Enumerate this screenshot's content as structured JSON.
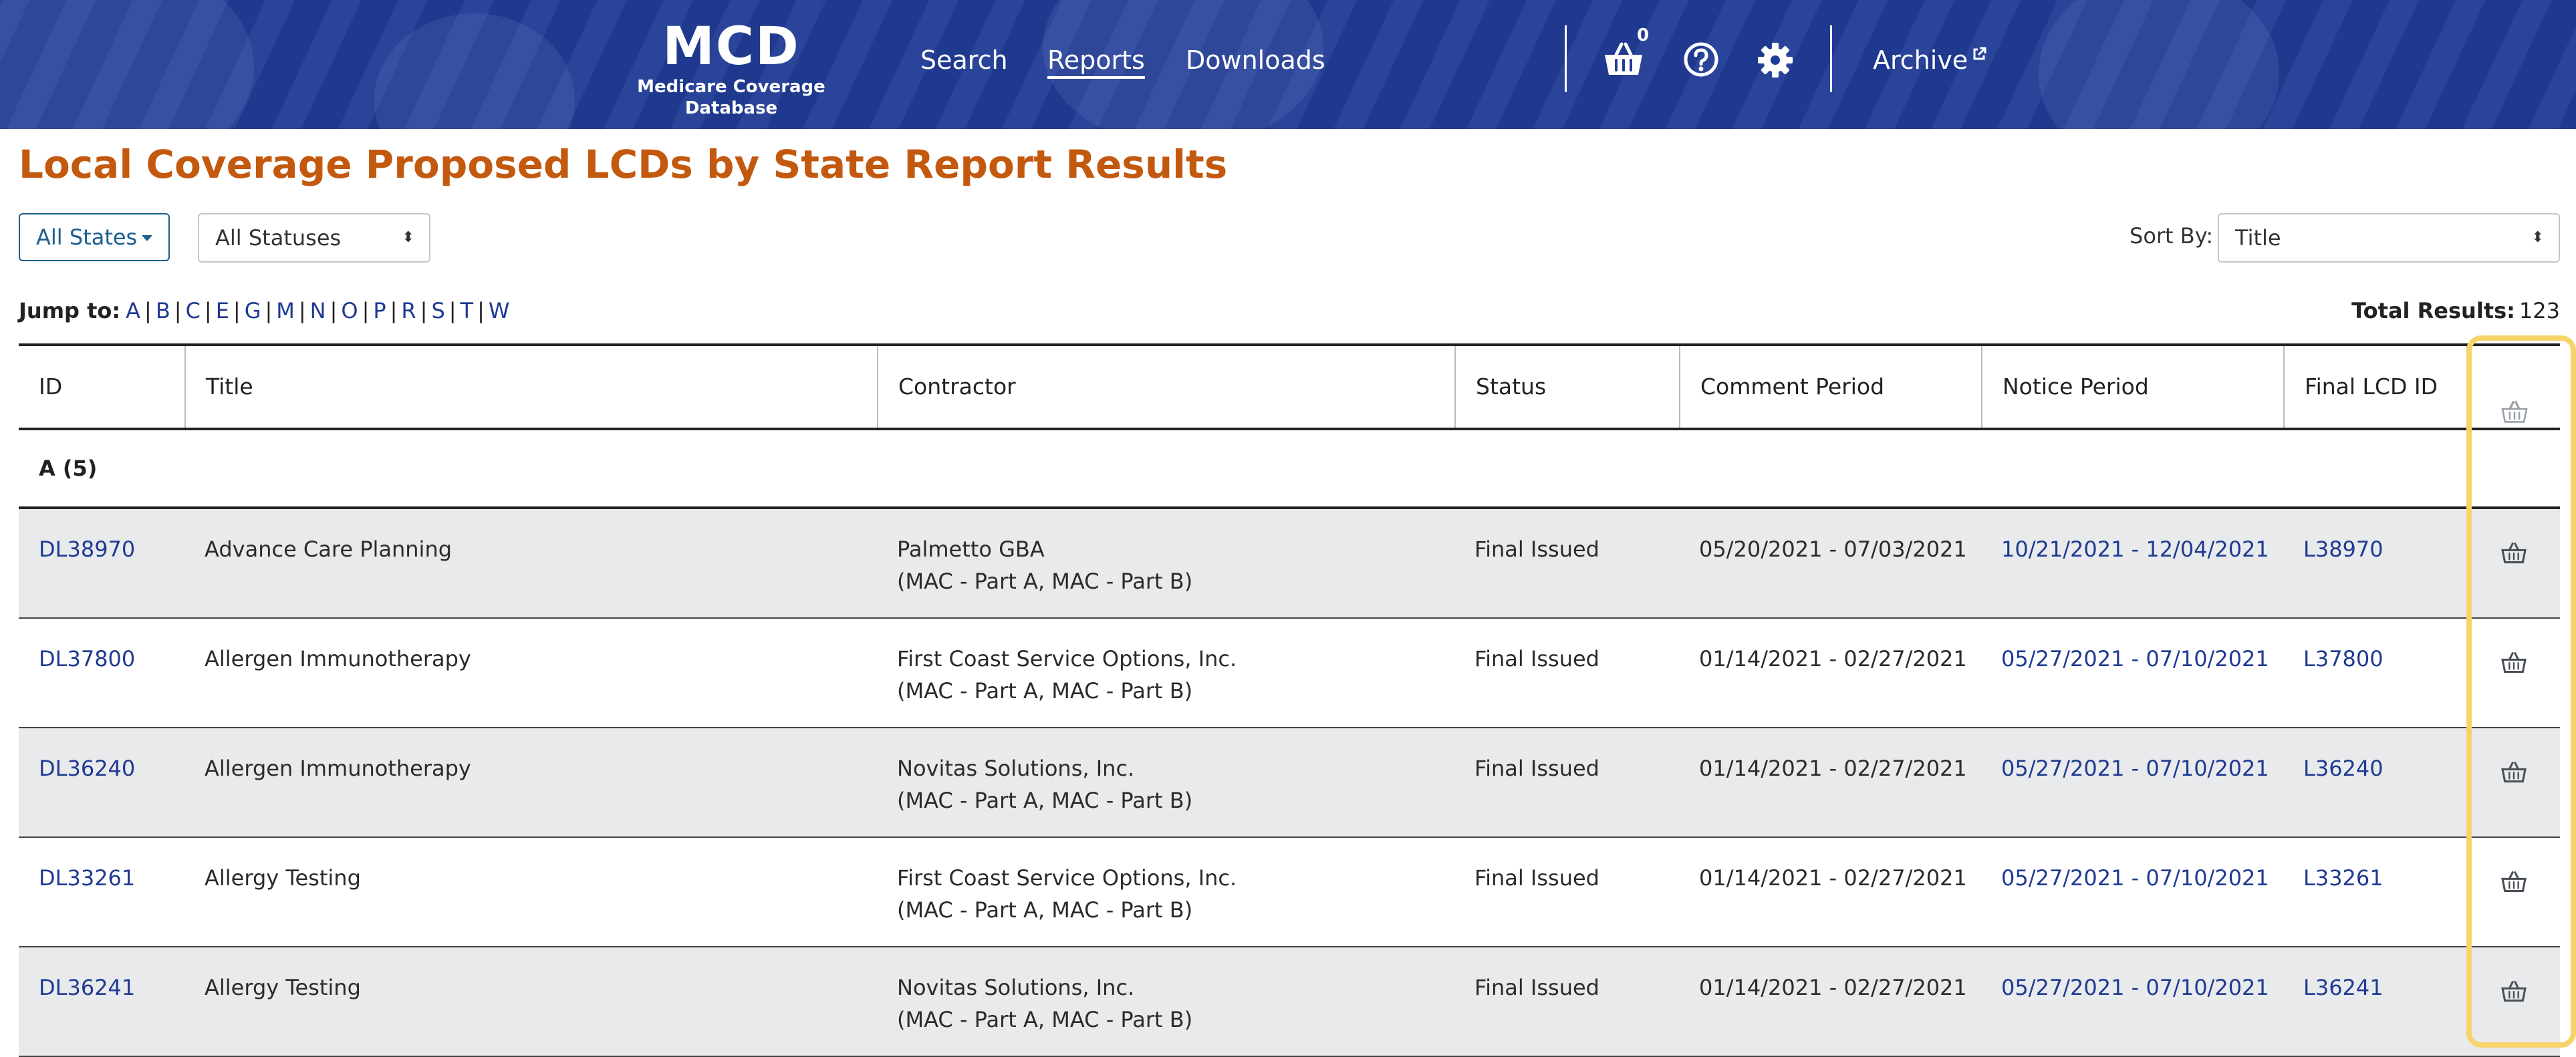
{
  "header": {
    "logo_title": "MCD",
    "logo_subtitle": "Medicare Coverage Database",
    "nav": [
      {
        "label": "Search",
        "active": false
      },
      {
        "label": "Reports",
        "active": true
      },
      {
        "label": "Downloads",
        "active": false
      }
    ],
    "basket_count": "0",
    "archive_label": "Archive",
    "icons": [
      "basket-icon",
      "help-icon",
      "gear-icon",
      "external-link-icon"
    ]
  },
  "page": {
    "title": "Local Coverage Proposed LCDs by State Report Results"
  },
  "filters": {
    "states_label": "All States",
    "status_label": "All Statuses",
    "sort_by_label": "Sort By:",
    "sort_by_value": "Title"
  },
  "jump": {
    "label": "Jump to:",
    "letters": [
      "A",
      "B",
      "C",
      "E",
      "G",
      "M",
      "N",
      "O",
      "P",
      "R",
      "S",
      "T",
      "W"
    ]
  },
  "total": {
    "label": "Total Results:",
    "value": "123"
  },
  "table": {
    "headers": [
      "ID",
      "Title",
      "Contractor",
      "Status",
      "Comment Period",
      "Notice Period",
      "Final LCD ID"
    ],
    "group_label": "A (5)",
    "rows": [
      {
        "id": "DL38970",
        "title": "Advance Care Planning",
        "contractor": "Palmetto GBA",
        "contractor_type": "(MAC - Part A, MAC - Part B)",
        "status": "Final Issued",
        "comment_period": "05/20/2021 - 07/03/2021",
        "notice_period": "10/21/2021 - 12/04/2021",
        "final_lcd_id": "L38970"
      },
      {
        "id": "DL37800",
        "title": "Allergen Immunotherapy",
        "contractor": "First Coast Service Options, Inc.",
        "contractor_type": "(MAC - Part A, MAC - Part B)",
        "status": "Final Issued",
        "comment_period": "01/14/2021 - 02/27/2021",
        "notice_period": "05/27/2021 - 07/10/2021",
        "final_lcd_id": "L37800"
      },
      {
        "id": "DL36240",
        "title": "Allergen Immunotherapy",
        "contractor": "Novitas Solutions, Inc.",
        "contractor_type": "(MAC - Part A, MAC - Part B)",
        "status": "Final Issued",
        "comment_period": "01/14/2021 - 02/27/2021",
        "notice_period": "05/27/2021 - 07/10/2021",
        "final_lcd_id": "L36240"
      },
      {
        "id": "DL33261",
        "title": "Allergy Testing",
        "contractor": "First Coast Service Options, Inc.",
        "contractor_type": "(MAC - Part A, MAC - Part B)",
        "status": "Final Issued",
        "comment_period": "01/14/2021 - 02/27/2021",
        "notice_period": "05/27/2021 - 07/10/2021",
        "final_lcd_id": "L33261"
      },
      {
        "id": "DL36241",
        "title": "Allergy Testing",
        "contractor": "Novitas Solutions, Inc.",
        "contractor_type": "(MAC - Part A, MAC - Part B)",
        "status": "Final Issued",
        "comment_period": "01/14/2021 - 02/27/2021",
        "notice_period": "05/27/2021 - 07/10/2021",
        "final_lcd_id": "L36241"
      }
    ]
  },
  "colors": {
    "header_bg": "#213c96",
    "title": "#c3590f",
    "link": "#1f3a93",
    "highlight": "#f7d46a",
    "row_shade": "#e9eaec"
  }
}
